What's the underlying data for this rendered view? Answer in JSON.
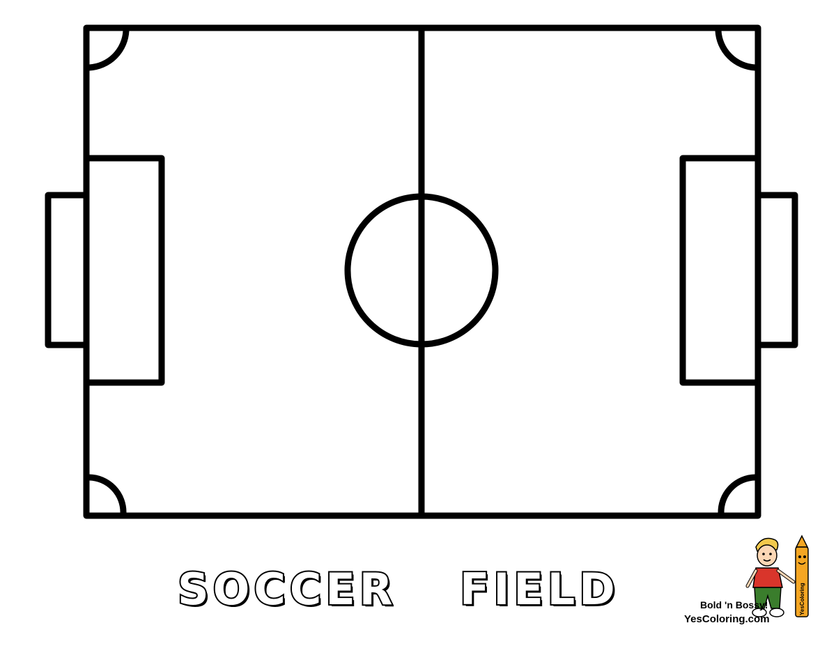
{
  "title": {
    "word1": "SOCCER",
    "word2": "FIELD"
  },
  "credit": {
    "tagline": "Bold 'n Bossy!",
    "site": "YesColoring.com",
    "crayon_label": "YesColoring"
  },
  "colors": {
    "line": "#000000",
    "background": "#ffffff",
    "crayon": "#f5a623",
    "shirt": "#d9352b",
    "pants": "#3a7d2c",
    "hair": "#f2c94c"
  },
  "icons": {
    "mascot": "boy-with-crayon-mascot-icon"
  }
}
